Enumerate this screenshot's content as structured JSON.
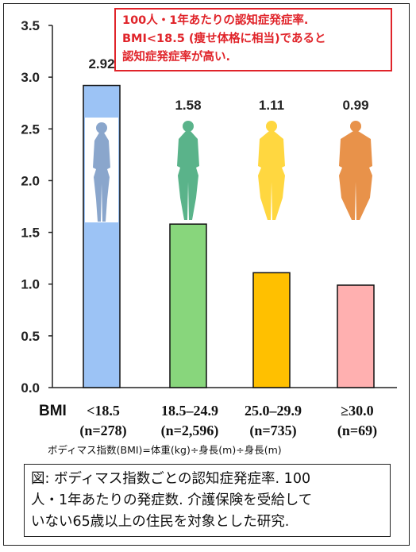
{
  "annotation": {
    "line1": "100人・1年あたりの認知症発症率.",
    "line2": "BMI<18.5 (痩せ体格に相当)であると",
    "line3": "認知症発症率が高い."
  },
  "axis_prefix": "BMI",
  "formula": "ボディマス指数(BMI)=体重(kg)÷身長(m)÷身長(m)",
  "caption": {
    "line1": "図: ボディマス指数ごとの認知症発症率. 100",
    "line2": "人・1年あたりの発症数. 介護保険を受給して",
    "line3": "いない65歳以上の住民を対象とした研究."
  },
  "chart_data": {
    "type": "bar",
    "categories": [
      "<18.5",
      "18.5–24.9",
      "25.0–29.9",
      "≥30.0"
    ],
    "category_counts": [
      "(n=278)",
      "(n=2,596)",
      "(n=735)",
      "(n=69)"
    ],
    "values": [
      2.92,
      1.58,
      1.11,
      0.99
    ],
    "value_labels": [
      "2.92",
      "1.58",
      "1.11",
      "0.99"
    ],
    "bar_colors": [
      "#9cc3f5",
      "#88d67c",
      "#ffc000",
      "#ffb0b0"
    ],
    "figure_colors": [
      "#8aa6cc",
      "#5ab38a",
      "#ffd740",
      "#e8924a"
    ],
    "yticks": [
      "0.0",
      "0.5",
      "1.0",
      "1.5",
      "2.0",
      "2.5",
      "3.0",
      "3.5"
    ],
    "ylim": [
      0,
      3.5
    ],
    "grid": false,
    "legend": "none"
  }
}
